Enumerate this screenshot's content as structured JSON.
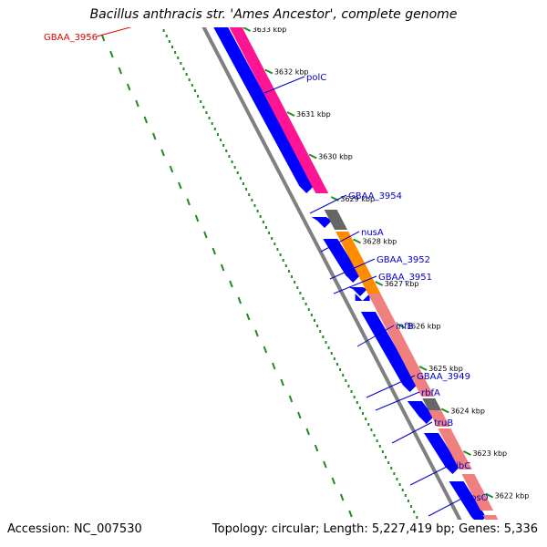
{
  "title": "Bacillus anthracis str. 'Ames Ancestor', complete genome",
  "footer": {
    "accession": "Accession: NC_007530",
    "summary": "Topology: circular; Length: 5,227,419 bp; Genes: 5,336"
  },
  "colors": {
    "backbone": "#808080",
    "gc_ticks": "#228b22",
    "cds_forward": "#0000ff",
    "highlight_gene": "#ff1493",
    "gene_gray": "#666666",
    "gene_orange": "#ff8c00",
    "gene_salmon": "#f08080",
    "label_blue": "#0000cc",
    "label_red": "#dd0000"
  },
  "ticks": [
    "3633 kbp",
    "3632 kbp",
    "3631 kbp",
    "3630 kbp",
    "3629 kbp",
    "3628 kbp",
    "3627 kbp",
    "3626 kbp",
    "3625 kbp",
    "3624 kbp",
    "3623 kbp",
    "3622 kbp"
  ],
  "gene_labels": [
    {
      "name": "GBAA_3956",
      "color": "red"
    },
    {
      "name": "polC",
      "color": "blue"
    },
    {
      "name": "GBAA_3954",
      "color": "blue"
    },
    {
      "name": "nusA",
      "color": "blue"
    },
    {
      "name": "GBAA_3952",
      "color": "blue"
    },
    {
      "name": "GBAA_3951",
      "color": "blue"
    },
    {
      "name": "infB",
      "color": "blue"
    },
    {
      "name": "GBAA_3949",
      "color": "blue"
    },
    {
      "name": "rbfA",
      "color": "blue"
    },
    {
      "name": "truB",
      "color": "blue"
    },
    {
      "name": "ribC",
      "color": "blue"
    },
    {
      "name": "rpsO",
      "color": "blue"
    }
  ]
}
